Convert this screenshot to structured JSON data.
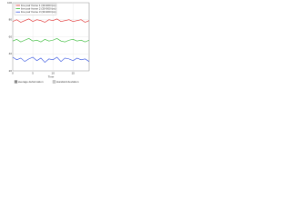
{
  "chart_data": {
    "type": "line",
    "x_label": "Time",
    "x": [
      0,
      1,
      2,
      3,
      4,
      5,
      6,
      7,
      8,
      9,
      10,
      11,
      12,
      13,
      14,
      15,
      16,
      17,
      18,
      19
    ],
    "xlim": [
      0,
      19
    ],
    "xticks": [
      0,
      5,
      10,
      15
    ],
    "ylim": [
      20,
      100
    ],
    "yticks": [
      20,
      40,
      60,
      80,
      100
    ],
    "grid": true,
    "legend": "top-left",
    "series": [
      {
        "name": "line pair frame 1 (30-900 fps)",
        "color": "#e03030",
        "values": [
          78,
          80,
          77,
          79,
          81,
          78,
          80,
          79,
          77,
          80,
          79,
          81,
          78,
          79,
          80,
          78,
          79,
          80,
          77,
          79
        ]
      },
      {
        "name": "line pair frame 2 (30-900 fps)",
        "color": "#30b830",
        "values": [
          55,
          57,
          54,
          56,
          58,
          55,
          56,
          54,
          57,
          55,
          56,
          58,
          55,
          54,
          56,
          57,
          55,
          56,
          54,
          56
        ]
      },
      {
        "name": "line pair frame 3 (30-900 fps)",
        "color": "#3050e0",
        "values": [
          36,
          33,
          35,
          31,
          34,
          36,
          32,
          35,
          30,
          34,
          33,
          36,
          31,
          35,
          34,
          32,
          35,
          33,
          34,
          31
        ]
      }
    ],
    "footer_legend": [
      {
        "label": "average deformation",
        "color": "#888888"
      },
      {
        "label": "standard deviation",
        "color": "#cccccc"
      }
    ]
  }
}
